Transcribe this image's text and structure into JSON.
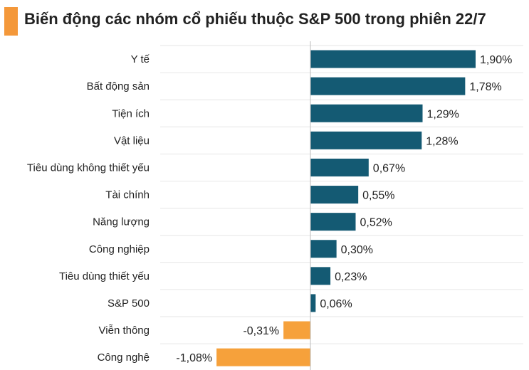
{
  "title": "Biến động các nhóm cổ phiếu thuộc S&P 500 trong phiên 22/7",
  "colors": {
    "positive": "#145a73",
    "negative": "#f6a13b",
    "grid": "#e6e6e6",
    "accent": "#f4983a"
  },
  "chart_data": {
    "type": "bar",
    "orientation": "horizontal",
    "grid": true,
    "xlim": [
      -1.2,
      2.0
    ],
    "categories": [
      "Y tế",
      "Bất động sản",
      "Tiện ích",
      "Vật liệu",
      "Tiêu dùng không thiết yếu",
      "Tài chính",
      "Năng lượng",
      "Công nghiệp",
      "Tiêu dùng thiết yếu",
      "S&P 500",
      "Viễn thông",
      "Công nghệ"
    ],
    "values": [
      1.9,
      1.78,
      1.29,
      1.28,
      0.67,
      0.55,
      0.52,
      0.3,
      0.23,
      0.06,
      -0.31,
      -1.08
    ],
    "labels": [
      "1,90%",
      "1,78%",
      "1,29%",
      "1,28%",
      "0,67%",
      "0,55%",
      "0,52%",
      "0,30%",
      "0,23%",
      "0,06%",
      "-0,31%",
      "-1,08%"
    ]
  }
}
